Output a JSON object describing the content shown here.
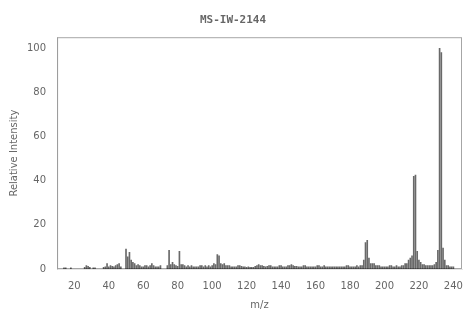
{
  "chart_data": {
    "type": "bar",
    "title": "MS-IW-2144",
    "xlabel": "m/z",
    "ylabel": "Relative Intensity",
    "x": [
      14,
      15,
      18,
      26,
      27,
      28,
      29,
      31,
      32,
      37,
      38,
      39,
      40,
      41,
      42,
      43,
      44,
      45,
      46,
      47,
      50,
      51,
      52,
      53,
      54,
      55,
      56,
      57,
      58,
      59,
      60,
      61,
      62,
      63,
      64,
      65,
      66,
      67,
      68,
      69,
      70,
      74,
      75,
      76,
      77,
      78,
      79,
      80,
      81,
      82,
      83,
      84,
      85,
      86,
      87,
      88,
      89,
      90,
      91,
      92,
      93,
      94,
      95,
      96,
      97,
      98,
      99,
      100,
      101,
      102,
      103,
      104,
      105,
      106,
      107,
      108,
      109,
      110,
      111,
      112,
      113,
      114,
      115,
      116,
      117,
      118,
      119,
      120,
      121,
      122,
      123,
      124,
      125,
      126,
      127,
      128,
      129,
      130,
      131,
      132,
      133,
      134,
      135,
      136,
      137,
      138,
      139,
      140,
      141,
      142,
      143,
      144,
      145,
      146,
      147,
      148,
      149,
      150,
      151,
      152,
      153,
      154,
      155,
      156,
      157,
      158,
      159,
      160,
      161,
      162,
      163,
      164,
      165,
      166,
      167,
      168,
      169,
      170,
      171,
      172,
      173,
      174,
      175,
      176,
      177,
      178,
      179,
      180,
      181,
      182,
      183,
      184,
      185,
      186,
      187,
      188,
      189,
      190,
      191,
      192,
      193,
      194,
      195,
      196,
      197,
      198,
      199,
      200,
      201,
      202,
      203,
      204,
      205,
      206,
      207,
      208,
      209,
      210,
      211,
      212,
      213,
      214,
      215,
      216,
      217,
      218,
      219,
      220,
      221,
      222,
      223,
      224,
      225,
      226,
      227,
      228,
      229,
      230,
      231,
      232,
      233,
      234,
      235,
      236,
      237,
      238,
      239,
      240
    ],
    "values": [
      0.5,
      0.5,
      0.5,
      0.8,
      1.5,
      1.2,
      0.8,
      0.5,
      0.5,
      0.8,
      1.0,
      2.5,
      1.0,
      1.5,
      1.2,
      1.0,
      1.5,
      2.0,
      2.5,
      1.0,
      9.0,
      5.5,
      7.5,
      4.0,
      3.0,
      2.5,
      1.5,
      2.0,
      1.5,
      1.0,
      1.0,
      1.5,
      1.5,
      1.0,
      1.5,
      2.5,
      1.5,
      1.0,
      1.0,
      1.0,
      1.5,
      1.5,
      8.5,
      2.0,
      3.0,
      2.0,
      1.5,
      1.2,
      8.0,
      2.0,
      2.0,
      1.5,
      1.0,
      1.5,
      1.0,
      1.5,
      1.0,
      1.0,
      1.0,
      1.0,
      1.5,
      1.5,
      1.0,
      1.5,
      1.0,
      1.5,
      1.0,
      1.5,
      2.5,
      2.0,
      6.5,
      6.0,
      2.5,
      2.0,
      2.5,
      1.5,
      1.5,
      1.5,
      1.0,
      1.0,
      1.0,
      1.0,
      1.5,
      1.5,
      1.2,
      1.0,
      1.0,
      0.8,
      1.0,
      0.8,
      0.8,
      0.8,
      1.2,
      1.5,
      2.0,
      1.5,
      1.5,
      1.2,
      1.0,
      1.2,
      1.5,
      1.5,
      1.0,
      1.0,
      1.0,
      1.0,
      1.5,
      1.5,
      1.0,
      1.0,
      1.0,
      1.5,
      1.5,
      2.0,
      1.5,
      1.2,
      1.2,
      1.0,
      1.0,
      1.0,
      1.5,
      1.5,
      1.0,
      1.0,
      1.0,
      1.0,
      1.0,
      1.0,
      1.5,
      1.5,
      1.0,
      1.0,
      1.5,
      1.0,
      1.0,
      1.0,
      1.0,
      1.0,
      1.0,
      1.0,
      1.0,
      1.0,
      1.0,
      1.0,
      1.0,
      1.5,
      1.5,
      1.0,
      1.0,
      1.0,
      1.0,
      1.5,
      1.0,
      1.5,
      1.5,
      4.0,
      12.0,
      13.0,
      5.0,
      2.5,
      2.5,
      2.5,
      1.5,
      1.5,
      1.5,
      1.0,
      1.0,
      1.0,
      1.0,
      1.0,
      1.5,
      1.5,
      1.0,
      1.0,
      1.5,
      1.0,
      1.0,
      1.5,
      1.5,
      2.5,
      2.5,
      4.0,
      5.0,
      6.0,
      42.0,
      42.5,
      8.0,
      4.0,
      3.0,
      2.0,
      2.0,
      1.5,
      1.5,
      1.5,
      1.5,
      1.5,
      2.0,
      3.0,
      8.5,
      100.0,
      98.0,
      9.5,
      4.0,
      1.5,
      1.5,
      1.0,
      1.0,
      1.0
    ],
    "color": "#696969",
    "xlim": [
      10,
      245
    ],
    "xticks": [
      20,
      40,
      60,
      80,
      100,
      120,
      140,
      160,
      180,
      200,
      220,
      240
    ],
    "ylim": [
      0,
      105
    ],
    "yticks": [
      0,
      20,
      40,
      60,
      80,
      100
    ],
    "grid": false
  }
}
